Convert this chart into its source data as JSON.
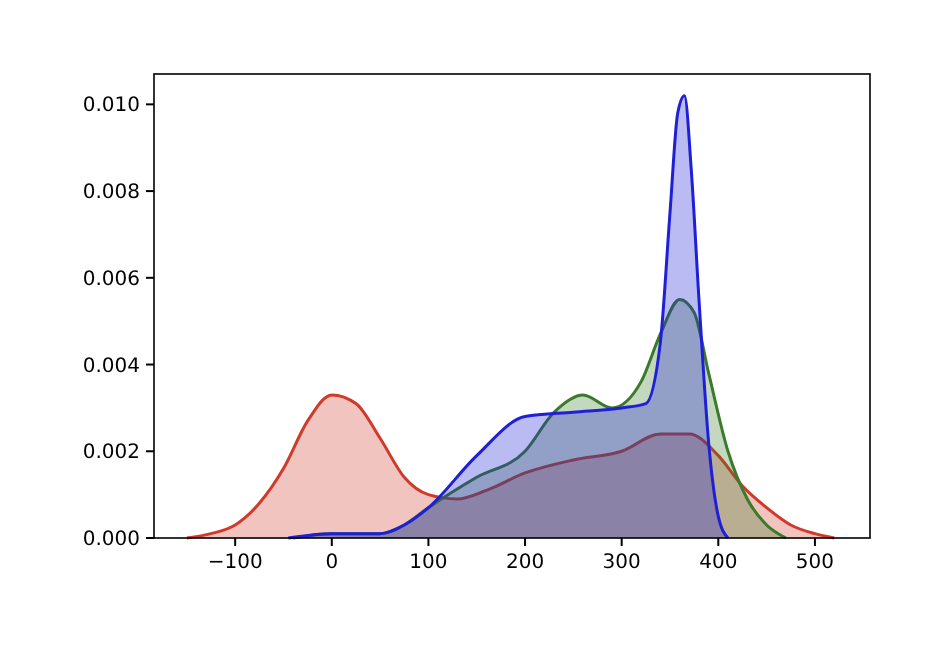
{
  "chart_data": {
    "type": "area",
    "xlim": [
      -184,
      557
    ],
    "ylim": [
      0,
      0.0107
    ],
    "xticks": [
      -100,
      0,
      100,
      200,
      300,
      400,
      500
    ],
    "yticks": [
      {
        "value": 0,
        "label": "0.000"
      },
      {
        "value": 0.002,
        "label": "0.002"
      },
      {
        "value": 0.004,
        "label": "0.004"
      },
      {
        "value": 0.006,
        "label": "0.006"
      },
      {
        "value": 0.008,
        "label": "0.008"
      },
      {
        "value": 0.01,
        "label": "0.010"
      }
    ],
    "series": [
      {
        "color": "#d03a2a",
        "x": [
          -150,
          -125,
          -100,
          -75,
          -50,
          -25,
          0,
          25,
          50,
          75,
          100,
          130,
          160,
          200,
          250,
          300,
          340,
          370,
          400,
          425,
          450,
          475,
          500,
          520
        ],
        "values": [
          0,
          0.0001,
          0.0003,
          0.0008,
          0.0016,
          0.0027,
          0.0033,
          0.0031,
          0.0023,
          0.0014,
          0.001,
          0.0009,
          0.0011,
          0.0015,
          0.0018,
          0.002,
          0.0024,
          0.0024,
          0.0019,
          0.0012,
          0.0007,
          0.0003,
          0.0001,
          0
        ]
      },
      {
        "color": "#3a7a2a",
        "x": [
          -40,
          0,
          50,
          75,
          100,
          150,
          200,
          230,
          260,
          290,
          320,
          340,
          360,
          375,
          390,
          410,
          430,
          450,
          470
        ],
        "values": [
          0,
          0.0001,
          0.0001,
          0.0003,
          0.0007,
          0.0014,
          0.002,
          0.0029,
          0.0033,
          0.003,
          0.0036,
          0.0047,
          0.0055,
          0.0052,
          0.0038,
          0.002,
          0.0009,
          0.0003,
          0
        ]
      },
      {
        "color": "#1f1fd8",
        "x": [
          -45,
          0,
          50,
          75,
          100,
          150,
          200,
          250,
          300,
          325,
          340,
          350,
          358,
          365,
          372,
          380,
          390,
          400,
          410
        ],
        "values": [
          0,
          0.0001,
          0.0001,
          0.0003,
          0.0007,
          0.0019,
          0.0028,
          0.0029,
          0.003,
          0.0031,
          0.0045,
          0.0075,
          0.0098,
          0.0102,
          0.0085,
          0.0055,
          0.0022,
          0.0005,
          0
        ]
      }
    ]
  }
}
